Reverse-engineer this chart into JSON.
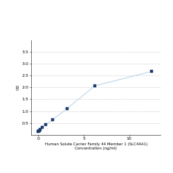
{
  "x": [
    0.0,
    0.05,
    0.1,
    0.2,
    0.4,
    0.8,
    1.56,
    3.13,
    6.25,
    12.5
  ],
  "y": [
    0.158,
    0.168,
    0.183,
    0.22,
    0.315,
    0.43,
    0.64,
    1.1,
    2.07,
    2.67
  ],
  "line_color": "#b8d4e8",
  "marker_color": "#1a3a6b",
  "marker_size": 3.5,
  "xlabel_line1": "Human Solute Carrier Family 44 Member 1 (SLC44A1)",
  "xlabel_line2": "Concentration (ng/ml)",
  "ylabel": "OD",
  "ylim": [
    0.0,
    4.0
  ],
  "xlim": [
    -0.8,
    13.5
  ],
  "yticks": [
    0.5,
    1.0,
    1.5,
    2.0,
    2.5,
    3.0,
    3.5
  ],
  "xticks": [
    0,
    5,
    10
  ],
  "grid_color": "#d0d0d0",
  "bg_color": "#ffffff",
  "label_fontsize": 4.0,
  "tick_fontsize": 4.5,
  "linewidth": 0.8
}
